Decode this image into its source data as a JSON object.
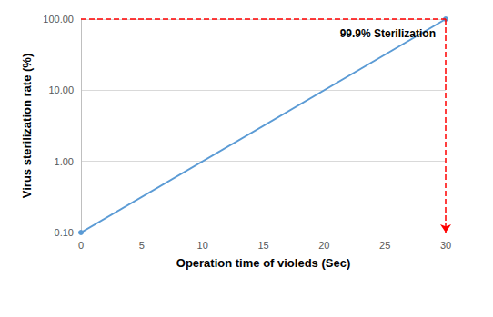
{
  "chart_data": {
    "type": "line",
    "x_label": "Operation time of violeds (Sec)",
    "y_label": "Virus sterilization rate (%)",
    "x": [
      0,
      30
    ],
    "values": [
      0.1,
      100
    ],
    "color": "#5b9bd5",
    "marker": "circle",
    "xlim": [
      0,
      30
    ],
    "xticks": [
      0,
      5,
      10,
      15,
      20,
      25,
      30
    ],
    "ylim": [
      0.1,
      100
    ],
    "yticks": [
      {
        "value": 0.1,
        "label": "0.10"
      },
      {
        "value": 1,
        "label": "1.00"
      },
      {
        "value": 10,
        "label": "10.00"
      },
      {
        "value": 100,
        "label": "100.00"
      }
    ],
    "log": "y",
    "grid": true,
    "annotations": [
      {
        "text": "99.9% Sterilization",
        "x": 30,
        "y": 100,
        "color": "#ff0000",
        "line_style": "dashed"
      }
    ]
  }
}
